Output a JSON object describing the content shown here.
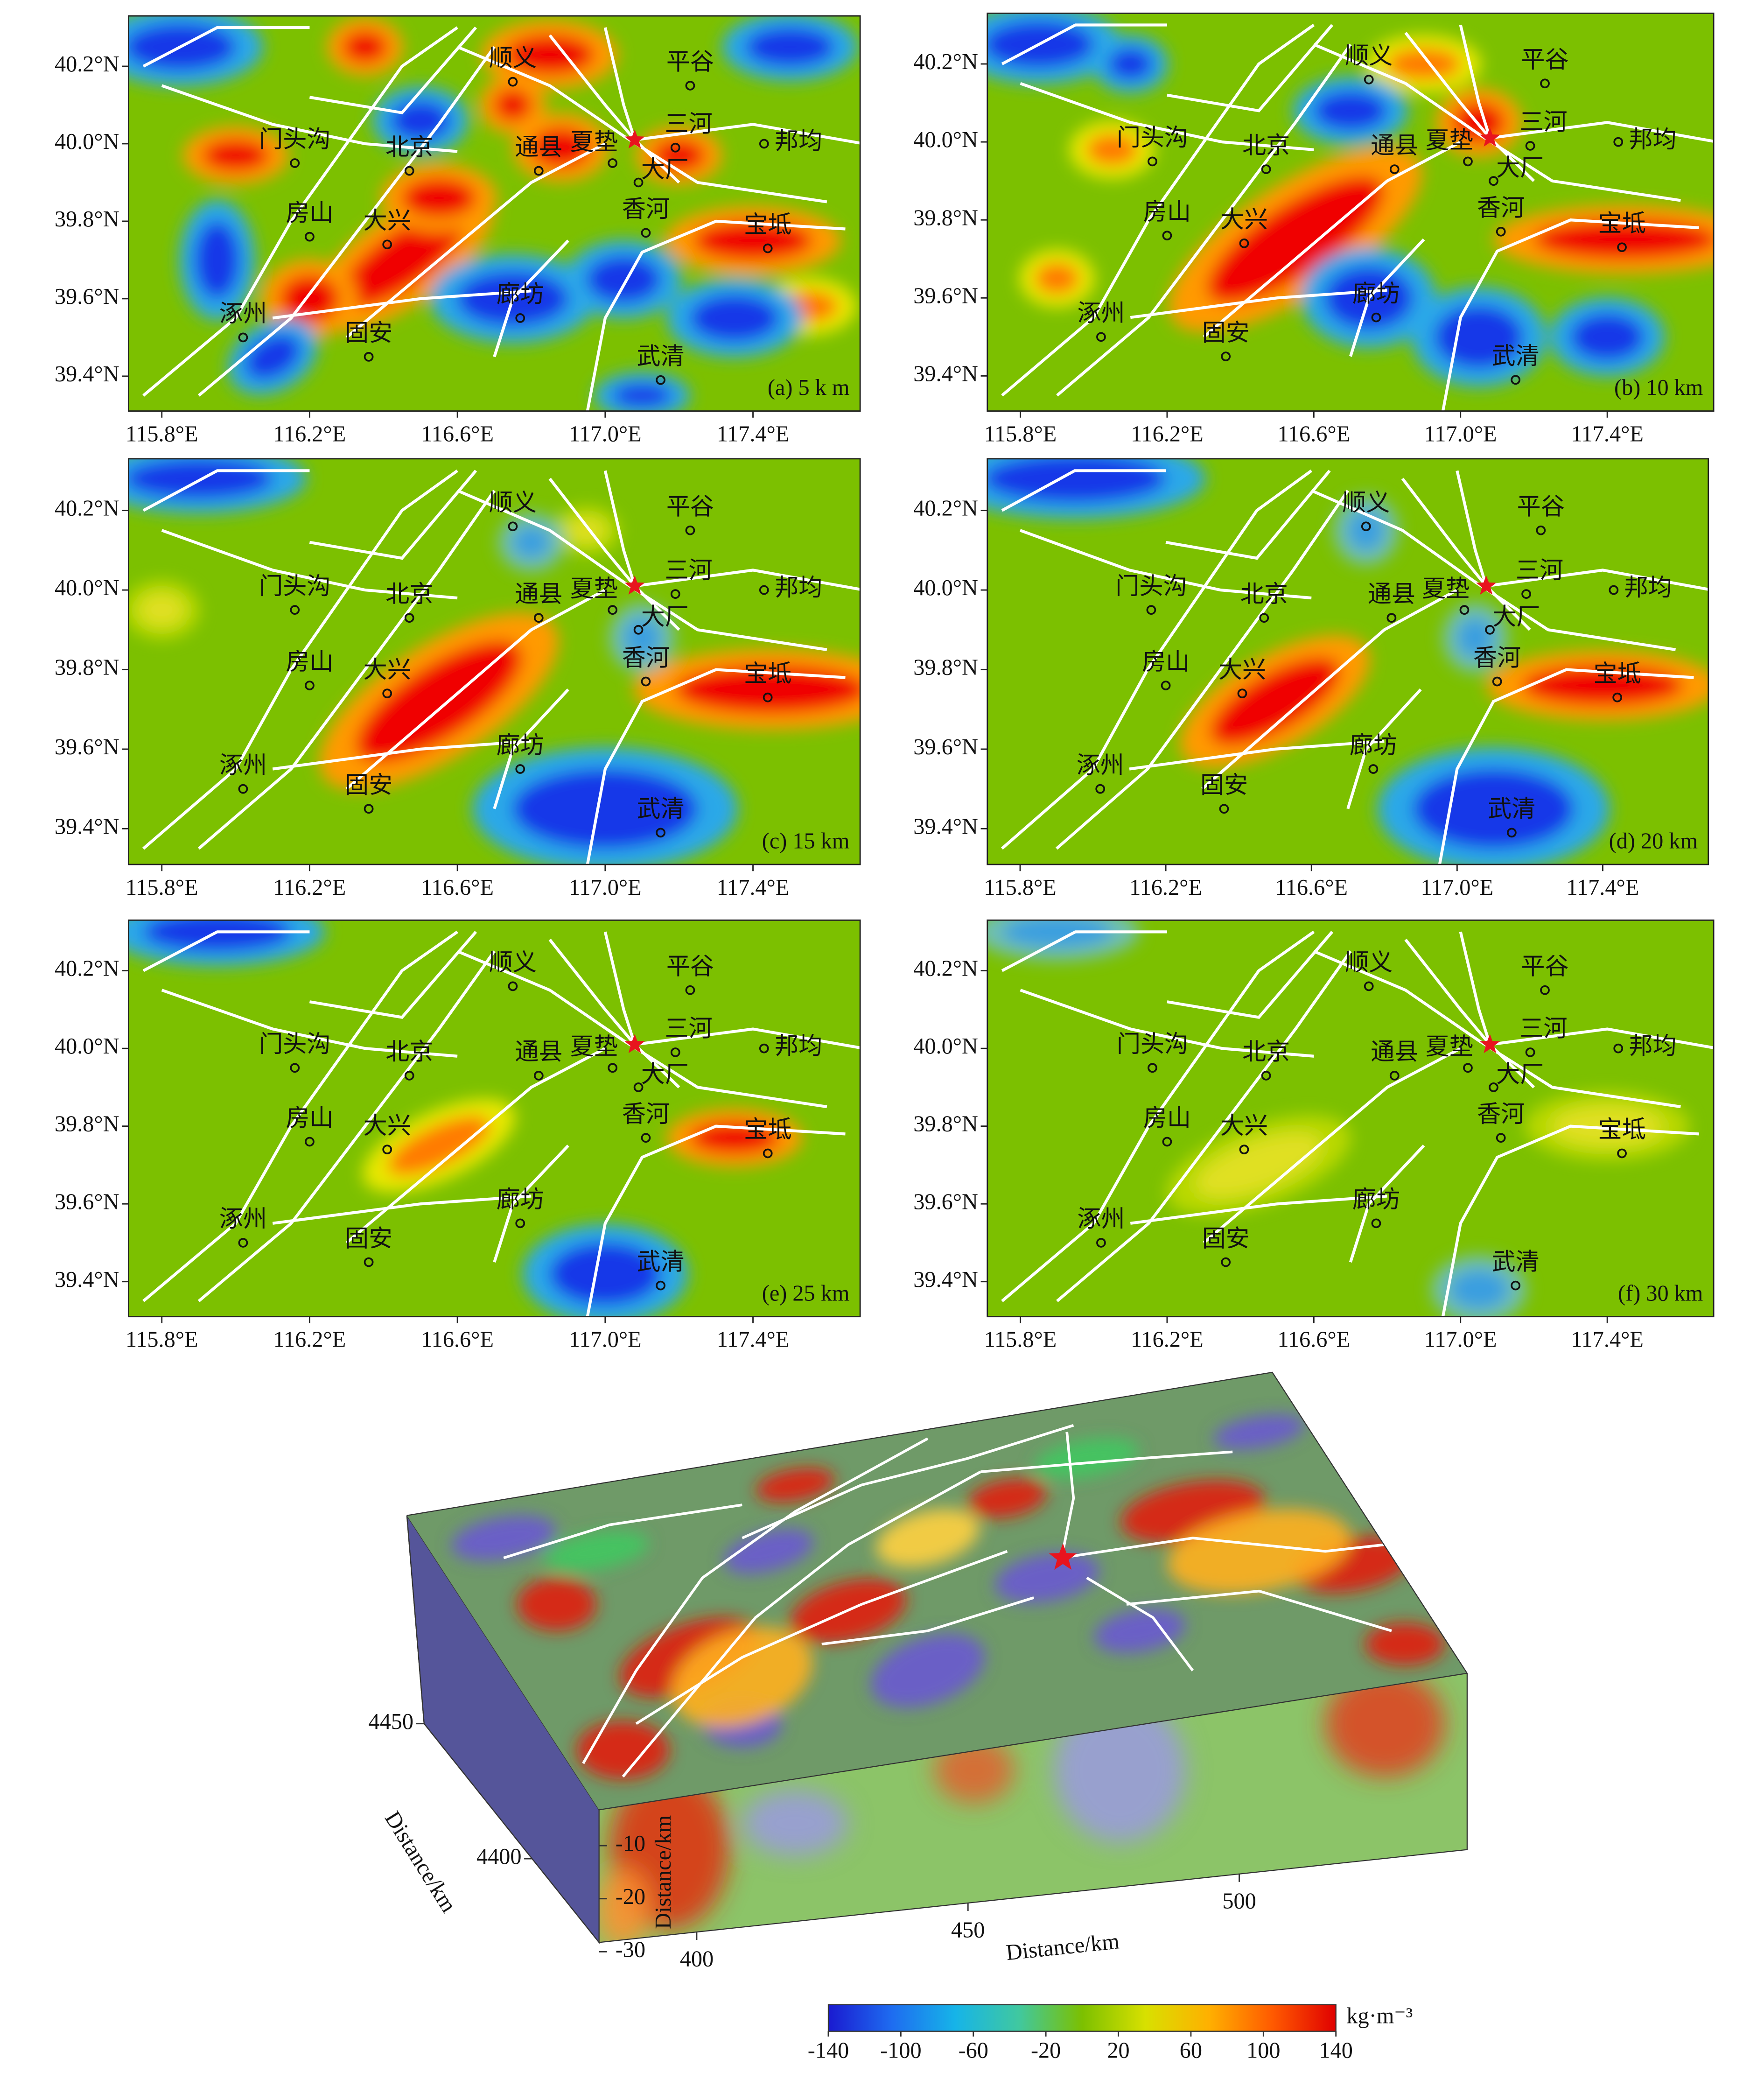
{
  "chart_data": {
    "type": "map",
    "panels": [
      {
        "label": "(a) 5 k m"
      },
      {
        "label": "(b) 10 km"
      },
      {
        "label": "(c) 15 km"
      },
      {
        "label": "(d) 20 km"
      },
      {
        "label": "(e) 25 km"
      },
      {
        "label": "(f) 30 km"
      }
    ],
    "xlim": [
      115.71,
      117.69
    ],
    "ylim": [
      39.31,
      40.33
    ],
    "xticks": [
      {
        "value": 115.8,
        "label": "115.8°E"
      },
      {
        "value": 116.2,
        "label": "116.2°E"
      },
      {
        "value": 116.6,
        "label": "116.6°E"
      },
      {
        "value": 117.0,
        "label": "117.0°E"
      },
      {
        "value": 117.4,
        "label": "117.4°E"
      }
    ],
    "yticks": [
      {
        "value": 40.2,
        "label": "40.2°N"
      },
      {
        "value": 40.0,
        "label": "40.0°N"
      },
      {
        "value": 39.8,
        "label": "39.8°N"
      },
      {
        "value": 39.6,
        "label": "39.6°N"
      },
      {
        "value": 39.4,
        "label": "39.4°N"
      }
    ],
    "cities": [
      {
        "name": "顺义",
        "lon": 116.75,
        "lat": 40.16
      },
      {
        "name": "平谷",
        "lon": 117.23,
        "lat": 40.15
      },
      {
        "name": "门头沟",
        "lon": 116.16,
        "lat": 39.95
      },
      {
        "name": "北京",
        "lon": 116.47,
        "lat": 39.93
      },
      {
        "name": "通县",
        "lon": 116.82,
        "lat": 39.93
      },
      {
        "name": "夏垫",
        "lon": 117.02,
        "lat": 39.95
      },
      {
        "name": "三河",
        "lon": 117.19,
        "lat": 39.99
      },
      {
        "name": "邦均",
        "lon": 117.43,
        "lat": 40.0
      },
      {
        "name": "大厂",
        "lon": 117.09,
        "lat": 39.9
      },
      {
        "name": "香河",
        "lon": 117.11,
        "lat": 39.77
      },
      {
        "name": "宝坻",
        "lon": 117.44,
        "lat": 39.73
      },
      {
        "name": "房山",
        "lon": 116.2,
        "lat": 39.76
      },
      {
        "name": "大兴",
        "lon": 116.41,
        "lat": 39.74
      },
      {
        "name": "涿州",
        "lon": 116.02,
        "lat": 39.5
      },
      {
        "name": "固安",
        "lon": 116.36,
        "lat": 39.45
      },
      {
        "name": "廊坊",
        "lon": 116.77,
        "lat": 39.55
      },
      {
        "name": "武清",
        "lon": 117.15,
        "lat": 39.39
      }
    ],
    "star": {
      "lon": 117.08,
      "lat": 40.01,
      "color": "#e8141e"
    },
    "block_3d": {
      "x_axis": {
        "label": "Distance/km",
        "lim": [
          382,
          542
        ],
        "ticks": [
          400,
          450,
          500
        ]
      },
      "y_axis": {
        "label": "Distance/km",
        "lim": [
          4369,
          4450
        ],
        "ticks": [
          4400,
          4450
        ]
      },
      "z_axis": {
        "label": "Distance/km",
        "lim": [
          0,
          -30
        ],
        "ticks": [
          -10,
          -20,
          -30
        ]
      }
    },
    "colorbar": {
      "label": "kg·m⁻³",
      "lim": [
        -140,
        140
      ],
      "ticks": [
        -140,
        -100,
        -60,
        -20,
        20,
        60,
        100,
        140
      ],
      "colors": [
        "#1a1ad0",
        "#1e6cf0",
        "#16b4e8",
        "#40c8a0",
        "#7cc000",
        "#d8e000",
        "#ffb000",
        "#ff5a00",
        "#e00000"
      ]
    }
  }
}
